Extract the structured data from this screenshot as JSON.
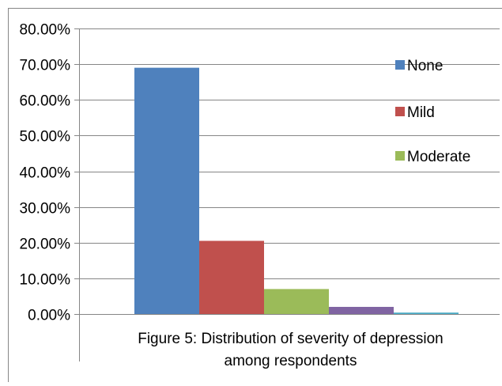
{
  "chart_data": {
    "type": "bar",
    "categories": [
      "None",
      "Mild",
      "Moderate",
      "",
      ""
    ],
    "values": [
      0.69,
      0.205,
      0.07,
      0.02,
      0.004
    ],
    "colors": [
      "#4f81bd",
      "#c0504d",
      "#9bbb59",
      "#8064a2",
      "#4bacc6"
    ],
    "ylim": [
      0,
      0.8
    ],
    "yticks": [
      0,
      0.1,
      0.2,
      0.3,
      0.4,
      0.5,
      0.6,
      0.7,
      0.8
    ],
    "ytick_labels": [
      "0.00%",
      "10.00%",
      "20.00%",
      "30.00%",
      "40.00%",
      "50.00%",
      "60.00%",
      "70.00%",
      "80.00%"
    ],
    "grid": true,
    "legend": {
      "placement": "right",
      "entries": [
        {
          "label": "None",
          "color": "#4f81bd"
        },
        {
          "label": "Mild",
          "color": "#c0504d"
        },
        {
          "label": "Moderate",
          "color": "#9bbb59"
        }
      ]
    },
    "caption_line1": "Figure 5: Distribution of severity of depression",
    "caption_line2": "among respondents"
  }
}
